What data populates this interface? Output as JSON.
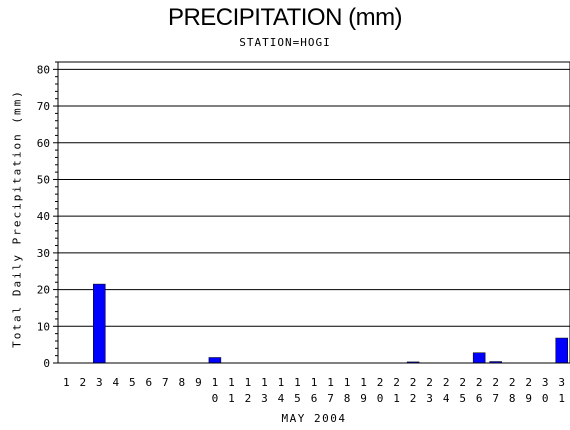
{
  "chart_data": {
    "type": "bar",
    "title": "PRECIPITATION (mm)",
    "subtitle": "STATION=HOGI",
    "xlabel": "MAY 2004",
    "ylabel": "Total Daily Precipitation (mm)",
    "ylim": [
      0,
      82
    ],
    "yticks": [
      0,
      10,
      20,
      30,
      40,
      50,
      60,
      70,
      80
    ],
    "grid": true,
    "bar_color": "#0000ff",
    "categories": [
      "1",
      "2",
      "3",
      "4",
      "5",
      "6",
      "7",
      "8",
      "9",
      "10",
      "11",
      "12",
      "13",
      "14",
      "15",
      "16",
      "17",
      "18",
      "19",
      "20",
      "21",
      "22",
      "23",
      "24",
      "25",
      "26",
      "27",
      "28",
      "29",
      "30",
      "31"
    ],
    "values": [
      0,
      0,
      21.5,
      0,
      0,
      0,
      0,
      0,
      0,
      1.5,
      0,
      0,
      0,
      0,
      0,
      0,
      0,
      0,
      0,
      0,
      0,
      0.3,
      0,
      0,
      0,
      2.8,
      0.4,
      0,
      0,
      0,
      6.8
    ]
  }
}
